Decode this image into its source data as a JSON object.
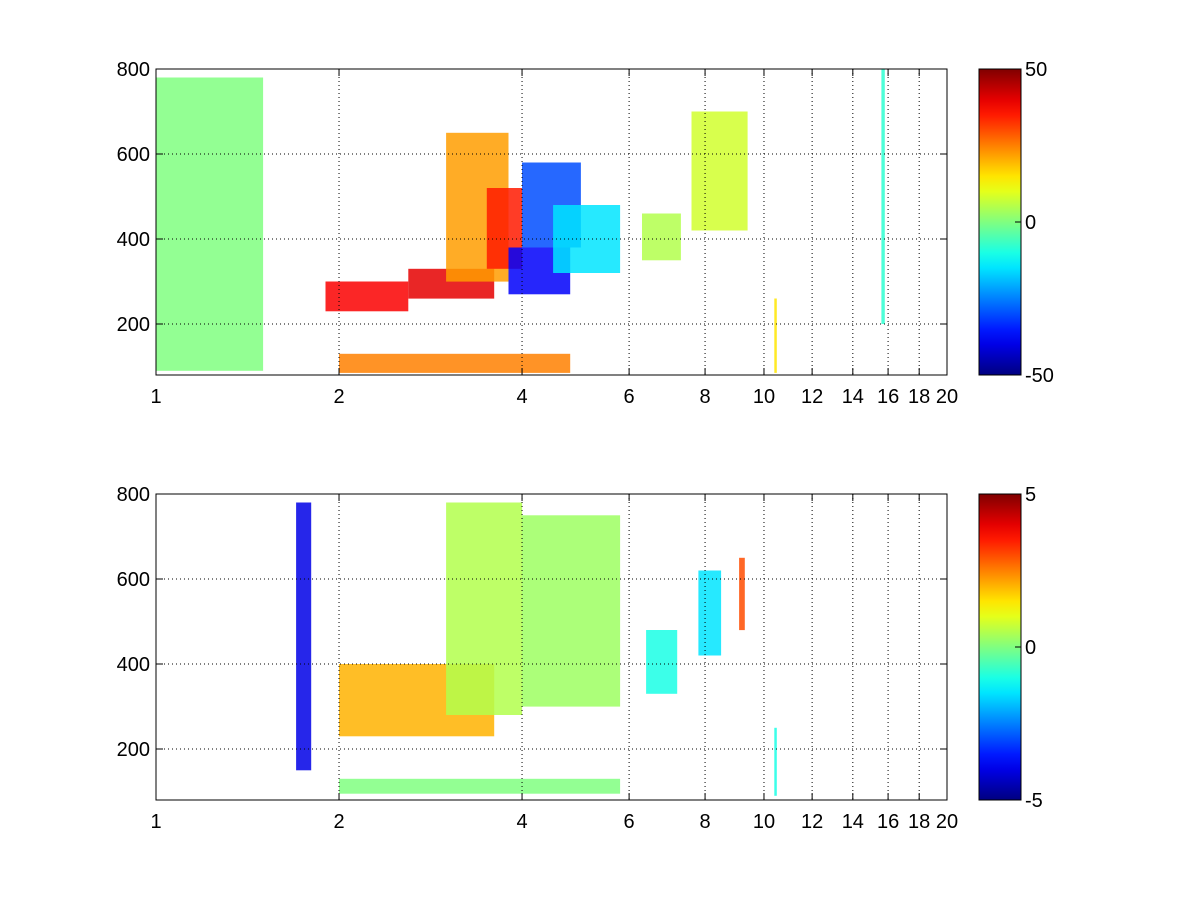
{
  "figure": {
    "background": "#ffffff"
  },
  "chart_data": [
    {
      "type": "heatmap",
      "title": "",
      "xlabel": "",
      "ylabel": "",
      "x_scale": "log",
      "xlim": [
        1,
        20
      ],
      "ylim": [
        80,
        800
      ],
      "x_ticks": [
        1,
        2,
        4,
        6,
        8,
        10,
        12,
        14,
        16,
        18,
        20
      ],
      "y_ticks": [
        200,
        400,
        600,
        800
      ],
      "grid": true,
      "colormap": "jet",
      "clim": [
        -50,
        50
      ],
      "colorbar_ticks": [
        -50,
        0,
        50
      ],
      "regions": [
        {
          "x": [
            1.0,
            1.5
          ],
          "y": [
            90,
            780
          ],
          "value": 0
        },
        {
          "x": [
            1.9,
            2.6
          ],
          "y": [
            230,
            300
          ],
          "value": 38
        },
        {
          "x": [
            2.6,
            3.6
          ],
          "y": [
            260,
            330
          ],
          "value": 40
        },
        {
          "x": [
            3.0,
            3.8
          ],
          "y": [
            300,
            650
          ],
          "value": 22
        },
        {
          "x": [
            3.5,
            4.0
          ],
          "y": [
            330,
            520
          ],
          "value": 35
        },
        {
          "x": [
            3.8,
            4.8
          ],
          "y": [
            270,
            380
          ],
          "value": -38
        },
        {
          "x": [
            4.0,
            5.0
          ],
          "y": [
            380,
            580
          ],
          "value": -30
        },
        {
          "x": [
            4.5,
            5.8
          ],
          "y": [
            320,
            480
          ],
          "value": -15
        },
        {
          "x": [
            2.0,
            4.8
          ],
          "y": [
            85,
            130
          ],
          "value": 25
        },
        {
          "x": [
            6.3,
            7.3
          ],
          "y": [
            350,
            460
          ],
          "value": 5
        },
        {
          "x": [
            7.6,
            9.4
          ],
          "y": [
            420,
            700
          ],
          "value": 8
        },
        {
          "x": [
            10.4,
            10.5
          ],
          "y": [
            85,
            260
          ],
          "value": 15
        },
        {
          "x": [
            15.6,
            15.8
          ],
          "y": [
            200,
            800
          ],
          "value": -8
        }
      ]
    },
    {
      "type": "heatmap",
      "title": "",
      "xlabel": "",
      "ylabel": "",
      "x_scale": "log",
      "xlim": [
        1,
        20
      ],
      "ylim": [
        80,
        800
      ],
      "x_ticks": [
        1,
        2,
        4,
        6,
        8,
        10,
        12,
        14,
        16,
        18,
        20
      ],
      "y_ticks": [
        200,
        400,
        600,
        800
      ],
      "grid": true,
      "colormap": "jet",
      "clim": [
        -5,
        5
      ],
      "colorbar_ticks": [
        -5,
        0,
        5
      ],
      "regions": [
        {
          "x": [
            1.7,
            1.8
          ],
          "y": [
            150,
            780
          ],
          "value": -4
        },
        {
          "x": [
            2.0,
            3.6
          ],
          "y": [
            230,
            400
          ],
          "value": 2
        },
        {
          "x": [
            3.0,
            4.0
          ],
          "y": [
            280,
            780
          ],
          "value": 0.5
        },
        {
          "x": [
            4.0,
            5.8
          ],
          "y": [
            300,
            750
          ],
          "value": 0.3
        },
        {
          "x": [
            2.0,
            5.8
          ],
          "y": [
            95,
            130
          ],
          "value": 0
        },
        {
          "x": [
            6.4,
            7.2
          ],
          "y": [
            330,
            480
          ],
          "value": -1
        },
        {
          "x": [
            7.8,
            8.5
          ],
          "y": [
            420,
            620
          ],
          "value": -1.5
        },
        {
          "x": [
            9.1,
            9.3
          ],
          "y": [
            480,
            650
          ],
          "value": 3
        },
        {
          "x": [
            10.4,
            10.5
          ],
          "y": [
            90,
            250
          ],
          "value": -1
        }
      ]
    }
  ]
}
